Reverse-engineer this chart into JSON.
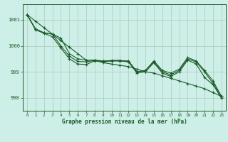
{
  "title": "Graphe pression niveau de la mer (hPa)",
  "background_color": "#ceeee8",
  "grid_color": "#aaccbb",
  "line_color": "#1a5c28",
  "text_color": "#1a5c28",
  "xlim": [
    -0.5,
    23.5
  ],
  "ylim": [
    997.5,
    1001.6
  ],
  "yticks": [
    998,
    999,
    1000,
    1001
  ],
  "xticks": [
    0,
    1,
    2,
    3,
    4,
    5,
    6,
    7,
    8,
    9,
    10,
    11,
    12,
    13,
    14,
    15,
    16,
    17,
    18,
    19,
    20,
    21,
    22,
    23
  ],
  "series": {
    "line_straight": [
      1001.2,
      1000.95,
      1000.7,
      1000.45,
      1000.2,
      999.95,
      999.7,
      999.45,
      999.45,
      999.35,
      999.3,
      999.25,
      999.2,
      999.1,
      999.0,
      998.95,
      998.85,
      998.75,
      998.65,
      998.55,
      998.45,
      998.35,
      998.2,
      998.05
    ],
    "line_mid1": [
      1001.2,
      1000.65,
      1000.5,
      1000.45,
      1000.3,
      999.7,
      999.5,
      999.45,
      999.45,
      999.42,
      999.42,
      999.42,
      999.42,
      999.0,
      999.05,
      999.42,
      999.05,
      998.95,
      999.1,
      999.55,
      999.42,
      999.05,
      998.65,
      998.05
    ],
    "line_mid2": [
      1001.2,
      1000.65,
      1000.5,
      1000.45,
      1000.0,
      999.6,
      999.4,
      999.38,
      999.44,
      999.4,
      999.44,
      999.44,
      999.4,
      999.0,
      999.05,
      999.38,
      999.0,
      998.88,
      999.05,
      999.5,
      999.38,
      999.0,
      998.55,
      998.05
    ],
    "line_dip": [
      1001.2,
      1000.62,
      1000.48,
      1000.35,
      999.92,
      999.5,
      999.3,
      999.28,
      999.42,
      999.38,
      999.42,
      999.42,
      999.38,
      998.95,
      999.0,
      999.35,
      998.95,
      998.82,
      999.0,
      999.45,
      999.3,
      998.78,
      998.5,
      997.98
    ]
  }
}
